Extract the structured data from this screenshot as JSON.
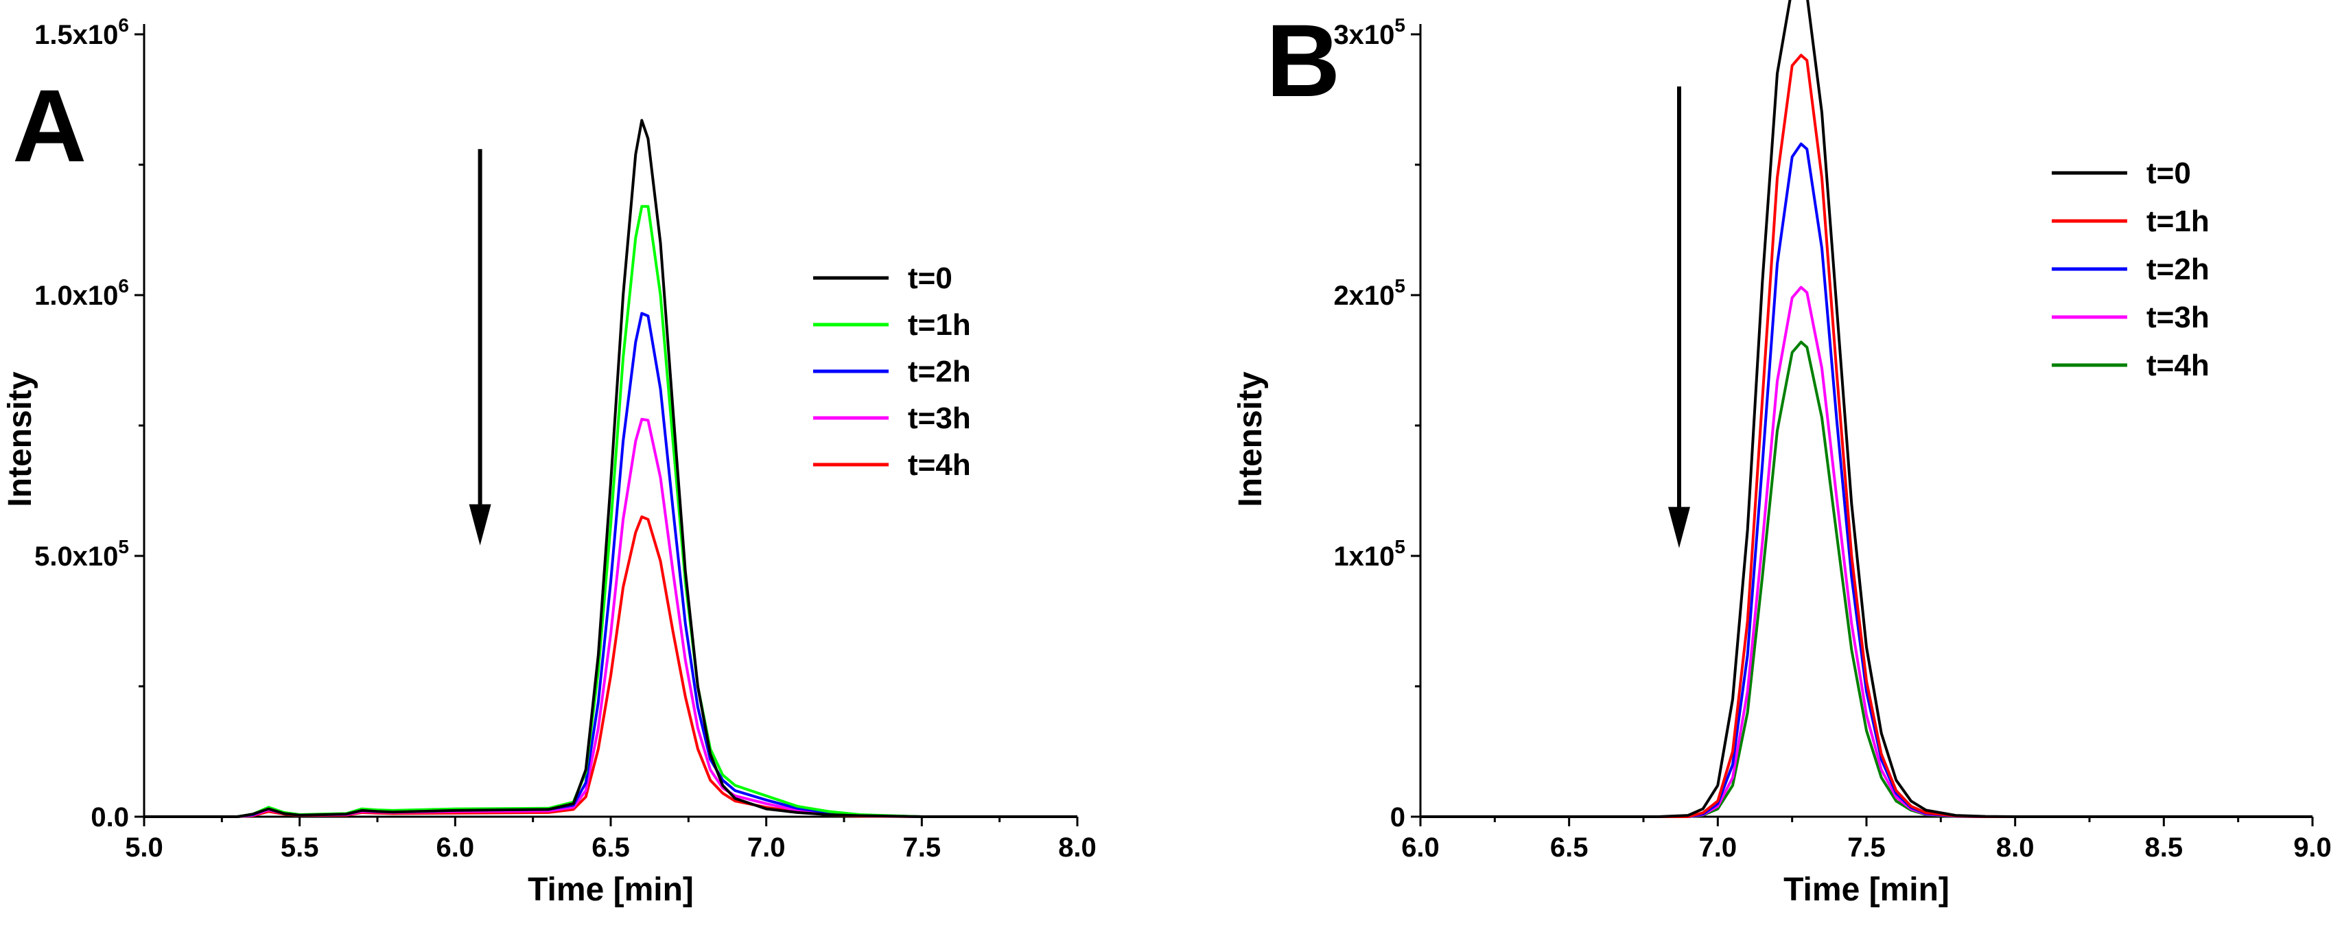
{
  "chart_data": [
    {
      "panel": "A",
      "type": "line",
      "xlabel": "Time [min]",
      "ylabel": "Intensity",
      "xlim": [
        5.0,
        8.0
      ],
      "ylim": [
        0,
        1500000
      ],
      "xticks": [
        5.0,
        5.5,
        6.0,
        6.5,
        7.0,
        7.5,
        8.0
      ],
      "xtick_labels": [
        "5.0",
        "5.5",
        "6.0",
        "6.5",
        "7.0",
        "7.5",
        "8.0"
      ],
      "yticks": [
        0,
        500000,
        1000000,
        1500000
      ],
      "ytick_labels": [
        {
          "base": "0.0",
          "exp": ""
        },
        {
          "base": "5.0x10",
          "exp": "5"
        },
        {
          "base": "1.0x10",
          "exp": "6"
        },
        {
          "base": "1.5x10",
          "exp": "6"
        }
      ],
      "legend_position": "center-right",
      "arrow": {
        "x": 6.08,
        "from": 1280000,
        "to": 520000,
        "direction": "down"
      },
      "series": [
        {
          "name": "t=0",
          "color": "#000000",
          "x": [
            5.0,
            5.3,
            5.35,
            5.4,
            5.45,
            5.5,
            5.65,
            5.7,
            5.75,
            5.8,
            6.0,
            6.3,
            6.38,
            6.42,
            6.46,
            6.5,
            6.54,
            6.58,
            6.6,
            6.62,
            6.66,
            6.7,
            6.74,
            6.78,
            6.82,
            6.86,
            6.9,
            7.0,
            7.1,
            7.2,
            7.3,
            7.5,
            8.0
          ],
          "y": [
            0,
            0,
            5000,
            15000,
            6000,
            3000,
            5000,
            12000,
            10000,
            9000,
            12000,
            14000,
            25000,
            90000,
            310000,
            640000,
            1000000,
            1270000,
            1335000,
            1300000,
            1100000,
            780000,
            470000,
            250000,
            120000,
            60000,
            35000,
            15000,
            8000,
            4000,
            2000,
            0,
            0
          ]
        },
        {
          "name": "t=1h",
          "color": "#00ff00",
          "x": [
            5.0,
            5.3,
            5.35,
            5.4,
            5.45,
            5.5,
            5.65,
            5.7,
            5.75,
            5.8,
            6.0,
            6.3,
            6.38,
            6.42,
            6.46,
            6.5,
            6.54,
            6.58,
            6.6,
            6.62,
            6.66,
            6.7,
            6.74,
            6.78,
            6.82,
            6.86,
            6.9,
            7.0,
            7.1,
            7.2,
            7.3,
            7.5,
            8.0
          ],
          "y": [
            0,
            0,
            5000,
            18000,
            8000,
            4000,
            6000,
            15000,
            13000,
            12000,
            15000,
            16000,
            28000,
            85000,
            280000,
            560000,
            880000,
            1110000,
            1170000,
            1170000,
            1000000,
            720000,
            450000,
            250000,
            130000,
            80000,
            60000,
            40000,
            20000,
            10000,
            4000,
            0,
            0
          ]
        },
        {
          "name": "t=2h",
          "color": "#0000ff",
          "x": [
            5.0,
            5.3,
            5.35,
            5.4,
            5.45,
            5.5,
            5.65,
            5.7,
            5.75,
            5.8,
            6.0,
            6.3,
            6.38,
            6.42,
            6.46,
            6.5,
            6.54,
            6.58,
            6.6,
            6.62,
            6.66,
            6.7,
            6.74,
            6.78,
            6.82,
            6.86,
            6.9,
            7.0,
            7.1,
            7.2,
            7.3,
            7.5,
            8.0
          ],
          "y": [
            0,
            0,
            4000,
            16000,
            7000,
            3500,
            5000,
            13000,
            11000,
            10000,
            13000,
            14000,
            22000,
            65000,
            220000,
            450000,
            720000,
            910000,
            965000,
            960000,
            820000,
            590000,
            370000,
            210000,
            110000,
            70000,
            50000,
            32000,
            16000,
            8000,
            3000,
            0,
            0
          ]
        },
        {
          "name": "t=3h",
          "color": "#ff00ff",
          "x": [
            5.0,
            5.3,
            5.35,
            5.4,
            5.45,
            5.5,
            5.65,
            5.7,
            5.75,
            5.8,
            6.0,
            6.3,
            6.38,
            6.42,
            6.46,
            6.5,
            6.54,
            6.58,
            6.6,
            6.62,
            6.66,
            6.7,
            6.74,
            6.78,
            6.82,
            6.86,
            6.9,
            7.0,
            7.1,
            7.2,
            7.3,
            7.5,
            8.0
          ],
          "y": [
            0,
            0,
            3000,
            13000,
            6000,
            3000,
            4000,
            10000,
            9000,
            8000,
            10000,
            11000,
            18000,
            50000,
            170000,
            350000,
            570000,
            720000,
            762000,
            760000,
            650000,
            470000,
            300000,
            170000,
            90000,
            55000,
            40000,
            25000,
            12000,
            6000,
            2000,
            0,
            0
          ]
        },
        {
          "name": "t=4h",
          "color": "#ff0000",
          "x": [
            5.0,
            5.3,
            5.35,
            5.4,
            5.45,
            5.5,
            5.65,
            5.7,
            5.75,
            5.8,
            6.0,
            6.3,
            6.38,
            6.42,
            6.46,
            6.5,
            6.54,
            6.58,
            6.6,
            6.62,
            6.66,
            6.7,
            6.74,
            6.78,
            6.82,
            6.86,
            6.9,
            7.0,
            7.1,
            7.2,
            7.3,
            7.5,
            8.0
          ],
          "y": [
            0,
            0,
            2000,
            10000,
            5000,
            2500,
            3000,
            8000,
            7000,
            6000,
            7000,
            8000,
            14000,
            38000,
            130000,
            270000,
            440000,
            545000,
            575000,
            570000,
            490000,
            355000,
            230000,
            130000,
            70000,
            45000,
            30000,
            18000,
            9000,
            4000,
            1000,
            0,
            0
          ]
        }
      ]
    },
    {
      "panel": "B",
      "type": "line",
      "xlabel": "Time [min]",
      "ylabel": "Intensity",
      "xlim": [
        6.0,
        9.0
      ],
      "ylim": [
        0,
        300000
      ],
      "xticks": [
        6.0,
        6.5,
        7.0,
        7.5,
        8.0,
        8.5,
        9.0
      ],
      "xtick_labels": [
        "6.0",
        "6.5",
        "7.0",
        "7.5",
        "8.0",
        "8.5",
        "9.0"
      ],
      "yticks": [
        0,
        100000,
        200000,
        300000
      ],
      "ytick_labels": [
        {
          "base": "0",
          "exp": ""
        },
        {
          "base": "1x10",
          "exp": "5"
        },
        {
          "base": "2x10",
          "exp": "5"
        },
        {
          "base": "3x10",
          "exp": "5"
        }
      ],
      "legend_position": "top-right",
      "arrow": {
        "x": 6.87,
        "from": 280000,
        "to": 103000,
        "direction": "down"
      },
      "series": [
        {
          "name": "t=0",
          "color": "#000000",
          "x": [
            6.0,
            6.8,
            6.9,
            6.95,
            7.0,
            7.05,
            7.1,
            7.15,
            7.2,
            7.25,
            7.28,
            7.3,
            7.35,
            7.4,
            7.45,
            7.5,
            7.55,
            7.6,
            7.65,
            7.7,
            7.8,
            7.9,
            8.0,
            9.0
          ],
          "y": [
            0,
            0,
            500,
            3000,
            12000,
            45000,
            110000,
            205000,
            285000,
            318000,
            320000,
            315000,
            270000,
            195000,
            120000,
            65000,
            32000,
            14000,
            6000,
            2500,
            500,
            100,
            0,
            0
          ]
        },
        {
          "name": "t=1h",
          "color": "#ff0000",
          "x": [
            6.0,
            6.8,
            6.9,
            6.95,
            7.0,
            7.05,
            7.1,
            7.15,
            7.2,
            7.25,
            7.28,
            7.3,
            7.35,
            7.4,
            7.45,
            7.5,
            7.55,
            7.6,
            7.65,
            7.7,
            7.8,
            7.9,
            8.0,
            9.0
          ],
          "y": [
            0,
            0,
            0,
            1500,
            6000,
            25000,
            75000,
            160000,
            245000,
            288000,
            292000,
            290000,
            245000,
            170000,
            100000,
            52000,
            24000,
            10000,
            4000,
            1500,
            300,
            0,
            0,
            0
          ]
        },
        {
          "name": "t=2h",
          "color": "#0000ff",
          "x": [
            6.0,
            6.8,
            6.9,
            6.95,
            7.0,
            7.05,
            7.1,
            7.15,
            7.2,
            7.25,
            7.28,
            7.3,
            7.35,
            7.4,
            7.45,
            7.5,
            7.55,
            7.6,
            7.65,
            7.7,
            7.8,
            7.9,
            8.0,
            9.0
          ],
          "y": [
            0,
            0,
            0,
            1000,
            5000,
            20000,
            62000,
            135000,
            212000,
            253000,
            258000,
            256000,
            218000,
            152000,
            92000,
            48000,
            22000,
            9000,
            3500,
            1200,
            200,
            0,
            0,
            0
          ]
        },
        {
          "name": "t=3h",
          "color": "#ff00ff",
          "x": [
            6.0,
            6.8,
            6.9,
            6.95,
            7.0,
            7.05,
            7.1,
            7.15,
            7.2,
            7.25,
            7.28,
            7.3,
            7.35,
            7.4,
            7.45,
            7.5,
            7.55,
            7.6,
            7.65,
            7.7,
            7.8,
            7.9,
            8.0,
            9.0
          ],
          "y": [
            0,
            0,
            0,
            800,
            4000,
            15000,
            48000,
            105000,
            167000,
            199000,
            203000,
            201000,
            172000,
            122000,
            74000,
            39000,
            18000,
            7500,
            3000,
            1000,
            200,
            0,
            0,
            0
          ]
        },
        {
          "name": "t=4h",
          "color": "#008000",
          "x": [
            6.0,
            6.8,
            6.9,
            6.95,
            7.0,
            7.05,
            7.1,
            7.15,
            7.2,
            7.25,
            7.28,
            7.3,
            7.35,
            7.4,
            7.45,
            7.5,
            7.55,
            7.6,
            7.65,
            7.7,
            7.8,
            7.9,
            8.0,
            9.0
          ],
          "y": [
            0,
            0,
            0,
            600,
            3000,
            12000,
            40000,
            92000,
            148000,
            178000,
            182000,
            180000,
            153000,
            108000,
            64000,
            33000,
            15000,
            6000,
            2500,
            800,
            100,
            0,
            0,
            0
          ]
        }
      ]
    }
  ]
}
